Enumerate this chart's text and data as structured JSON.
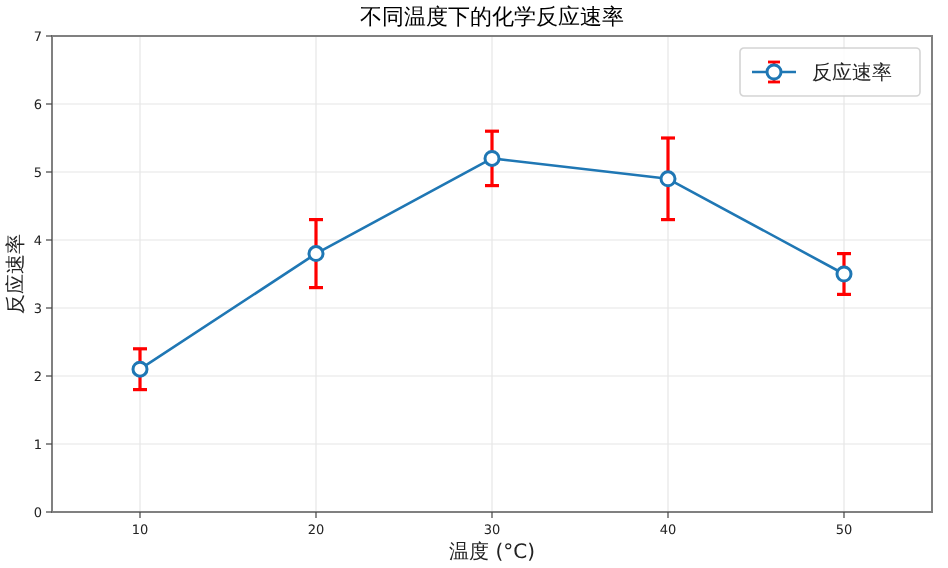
{
  "chart_data": {
    "type": "line",
    "title": "不同温度下的化学反应速率",
    "xlabel": "温度 (°C)",
    "ylabel": "反应速率",
    "x": [
      10,
      20,
      30,
      40,
      50
    ],
    "series": [
      {
        "name": "反应速率",
        "color": "#1f77b4",
        "values": [
          2.1,
          3.8,
          5.2,
          4.9,
          3.5
        ],
        "errors": [
          0.3,
          0.5,
          0.4,
          0.6,
          0.3
        ]
      }
    ],
    "xlim": [
      5,
      55
    ],
    "xticks": [
      10,
      20,
      30,
      40,
      50
    ],
    "ylim": [
      0,
      7
    ],
    "yticks": [
      0,
      1,
      2,
      3,
      4,
      5,
      6,
      7
    ],
    "grid": true,
    "legend": "top right",
    "marker": "circle",
    "line_style": "solid"
  }
}
